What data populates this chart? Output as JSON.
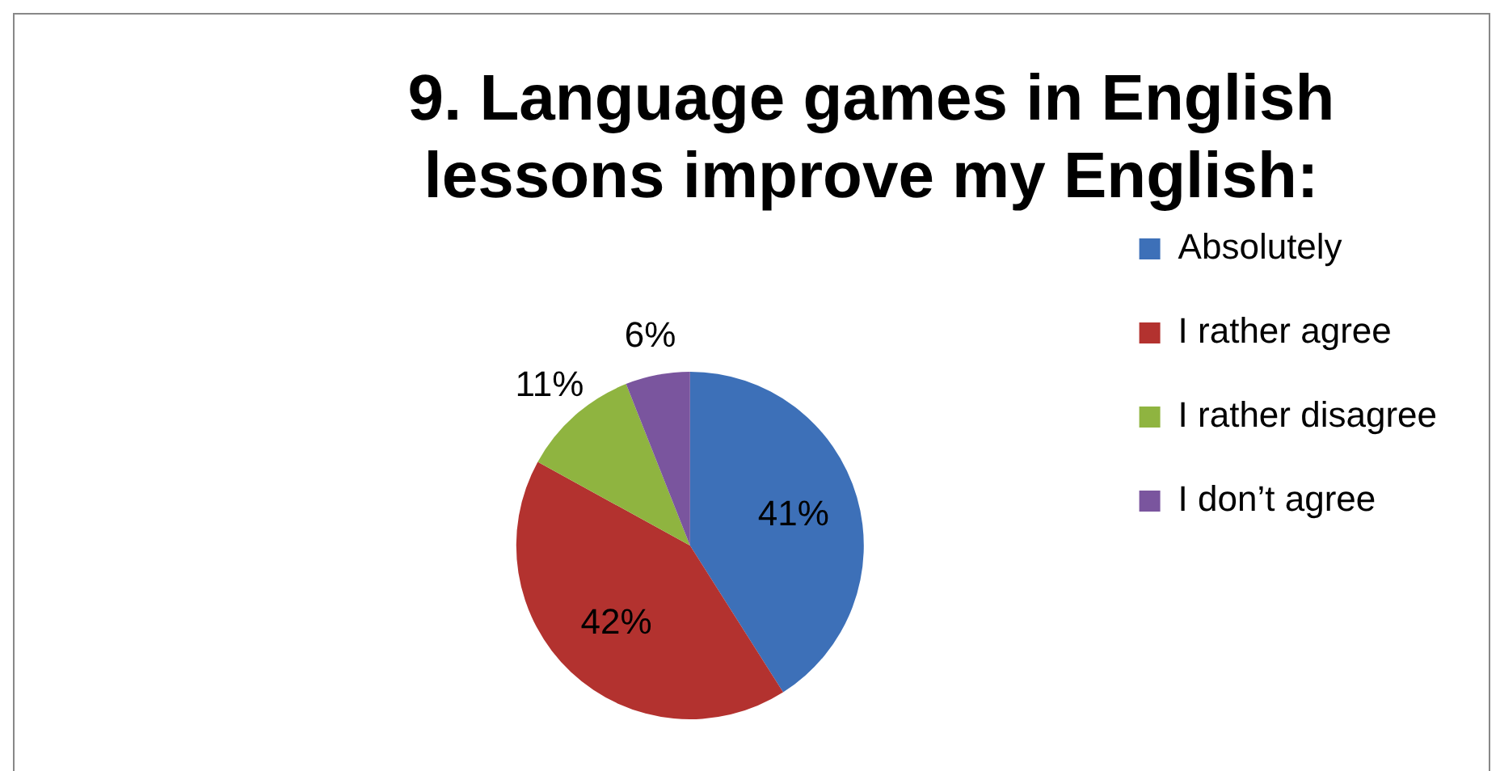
{
  "chart_data": {
    "type": "pie",
    "title": "9. Language games in English lessons improve my English:",
    "categories": [
      "Absolutely",
      "I rather agree",
      "I rather disagree",
      "I don’t agree"
    ],
    "values": [
      41,
      42,
      11,
      6
    ],
    "colors": [
      "#3d70b8",
      "#b3322f",
      "#8fb440",
      "#7a559e"
    ],
    "value_labels": [
      "41%",
      "42%",
      "11%",
      "6%"
    ],
    "legend": "right"
  }
}
